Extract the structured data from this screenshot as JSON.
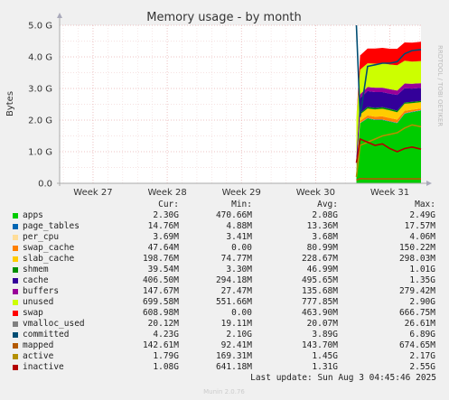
{
  "chart_data": {
    "type": "area",
    "title": "Memory usage - by month",
    "ylabel": "Bytes",
    "ylim": [
      0,
      5.0
    ],
    "y_unit": "G",
    "y_ticks": [
      "0.0",
      "1.0 G",
      "2.0 G",
      "3.0 G",
      "4.0 G",
      "5.0 G"
    ],
    "x_ticks": [
      "Week 27",
      "Week 28",
      "Week 29",
      "Week 30",
      "Week 31"
    ],
    "grid": true,
    "legend_headers": {
      "cur": "Cur:",
      "min": "Min:",
      "avg": "Avg:",
      "max": "Max:"
    },
    "series": [
      {
        "name": "apps",
        "color": "#00cc00",
        "cur": "2.30G",
        "min": "470.66M",
        "avg": "2.08G",
        "max": "2.49G"
      },
      {
        "name": "page_tables",
        "color": "#0066b3",
        "cur": "14.76M",
        "min": "4.88M",
        "avg": "13.36M",
        "max": "17.57M"
      },
      {
        "name": "per_cpu",
        "color": "#ffdd99",
        "cur": "3.69M",
        "min": "3.41M",
        "avg": "3.68M",
        "max": "4.06M"
      },
      {
        "name": "swap_cache",
        "color": "#ff8000",
        "cur": "47.64M",
        "min": "0.00",
        "avg": "80.99M",
        "max": "150.22M"
      },
      {
        "name": "slab_cache",
        "color": "#ffcc00",
        "cur": "198.76M",
        "min": "74.77M",
        "avg": "228.67M",
        "max": "298.03M"
      },
      {
        "name": "shmem",
        "color": "#008f00",
        "cur": "39.54M",
        "min": "3.30M",
        "avg": "46.99M",
        "max": "1.01G"
      },
      {
        "name": "cache",
        "color": "#330099",
        "cur": "406.50M",
        "min": "294.18M",
        "avg": "495.65M",
        "max": "1.35G"
      },
      {
        "name": "buffers",
        "color": "#990099",
        "cur": "147.67M",
        "min": "27.47M",
        "avg": "135.68M",
        "max": "279.42M"
      },
      {
        "name": "unused",
        "color": "#ccff00",
        "cur": "699.58M",
        "min": "551.66M",
        "avg": "777.85M",
        "max": "2.90G"
      },
      {
        "name": "swap",
        "color": "#ff0000",
        "cur": "608.98M",
        "min": "0.00",
        "avg": "463.90M",
        "max": "666.75M"
      },
      {
        "name": "vmalloc_used",
        "color": "#808080",
        "cur": "20.12M",
        "min": "19.11M",
        "avg": "20.07M",
        "max": "26.61M"
      },
      {
        "name": "committed",
        "color": "#004d73",
        "cur": "4.23G",
        "min": "2.10G",
        "avg": "3.89G",
        "max": "6.89G"
      },
      {
        "name": "mapped",
        "color": "#b35900",
        "cur": "142.61M",
        "min": "92.41M",
        "avg": "143.70M",
        "max": "674.65M"
      },
      {
        "name": "active",
        "color": "#b38f00",
        "cur": "1.79G",
        "min": "169.31M",
        "avg": "1.45G",
        "max": "2.17G"
      },
      {
        "name": "inactive",
        "color": "#b30000",
        "cur": "1.08G",
        "min": "641.18M",
        "avg": "1.31G",
        "max": "2.55G"
      }
    ],
    "stack_data_start_week": 30.55,
    "stack_order": [
      "apps",
      "page_tables",
      "per_cpu",
      "swap_cache",
      "slab_cache",
      "shmem",
      "cache",
      "buffers",
      "unused",
      "swap"
    ],
    "stack_values_G": {
      "x_weeks": [
        30.55,
        30.6,
        30.7,
        30.8,
        30.9,
        31.0,
        31.1,
        31.2,
        31.3,
        31.42
      ],
      "apps": [
        0.45,
        1.9,
        2.05,
        2.0,
        2.0,
        1.95,
        1.9,
        2.2,
        2.25,
        2.3
      ],
      "page_tables": [
        0.005,
        0.012,
        0.013,
        0.013,
        0.013,
        0.013,
        0.013,
        0.014,
        0.014,
        0.015
      ],
      "per_cpu": [
        0.004,
        0.004,
        0.004,
        0.004,
        0.004,
        0.004,
        0.004,
        0.004,
        0.004,
        0.004
      ],
      "swap_cache": [
        0.0,
        0.06,
        0.08,
        0.09,
        0.1,
        0.1,
        0.1,
        0.08,
        0.06,
        0.05
      ],
      "slab_cache": [
        0.08,
        0.2,
        0.22,
        0.23,
        0.24,
        0.24,
        0.23,
        0.22,
        0.21,
        0.2
      ],
      "shmem": [
        0.01,
        0.04,
        0.05,
        0.05,
        0.05,
        0.05,
        0.05,
        0.04,
        0.04,
        0.04
      ],
      "cache": [
        0.3,
        0.48,
        0.5,
        0.5,
        0.48,
        0.48,
        0.5,
        0.45,
        0.42,
        0.41
      ],
      "buffers": [
        0.03,
        0.12,
        0.13,
        0.14,
        0.14,
        0.14,
        0.14,
        0.15,
        0.15,
        0.15
      ],
      "unused": [
        1.2,
        0.78,
        0.75,
        0.76,
        0.77,
        0.78,
        0.8,
        0.72,
        0.7,
        0.7
      ],
      "swap": [
        0.0,
        0.45,
        0.47,
        0.48,
        0.49,
        0.5,
        0.52,
        0.58,
        0.6,
        0.61
      ]
    },
    "line_values_G": {
      "x_weeks": [
        30.55,
        30.6,
        30.7,
        30.8,
        30.9,
        31.0,
        31.1,
        31.2,
        31.3,
        31.42
      ],
      "committed": [
        6.9,
        2.1,
        3.7,
        3.75,
        3.8,
        3.8,
        3.85,
        4.1,
        4.2,
        4.23
      ],
      "active": [
        0.2,
        1.2,
        1.3,
        1.4,
        1.5,
        1.55,
        1.6,
        1.75,
        1.85,
        1.79
      ],
      "inactive": [
        0.65,
        1.4,
        1.3,
        1.2,
        1.25,
        1.1,
        1.0,
        1.1,
        1.15,
        1.08
      ],
      "mapped": [
        0.1,
        0.15,
        0.14,
        0.14,
        0.14,
        0.14,
        0.14,
        0.14,
        0.14,
        0.14
      ]
    }
  },
  "side_label": "RRDTOOL / TOBI OETIKER",
  "last_update": "Last update: Sun Aug  3 04:45:46 2025",
  "footer": "Munin 2.0.76"
}
